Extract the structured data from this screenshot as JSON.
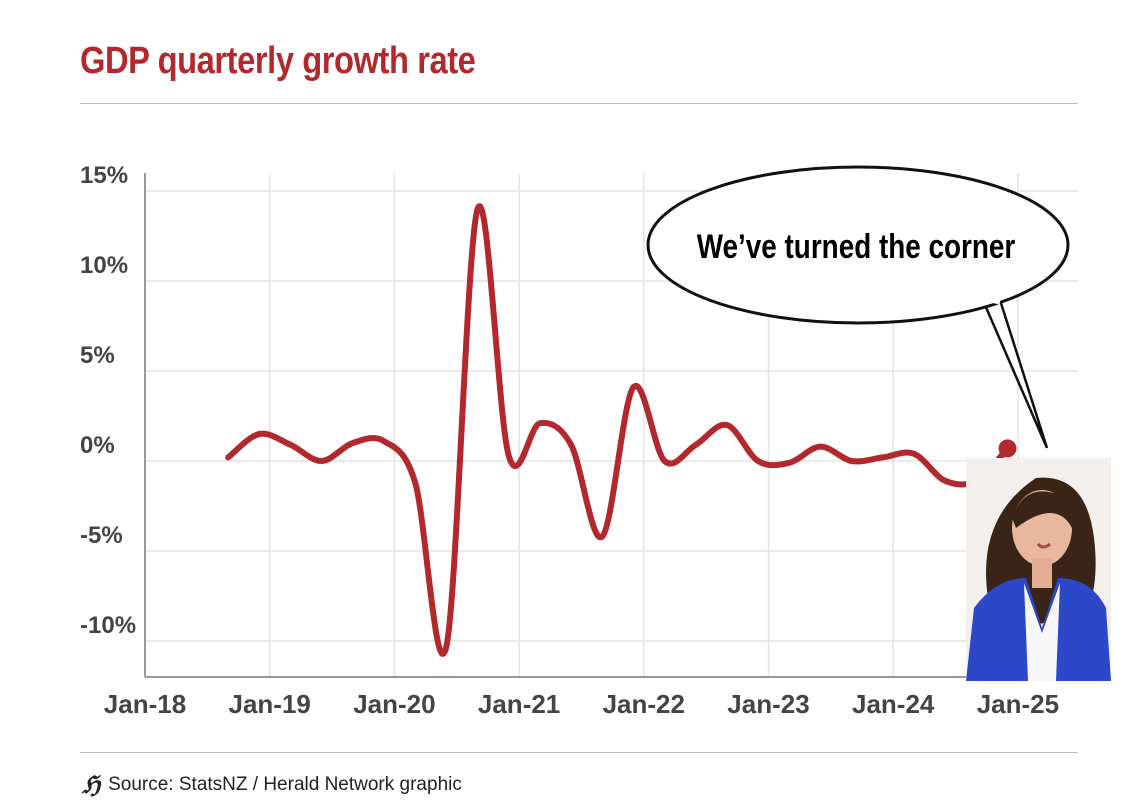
{
  "title": "GDP quarterly growth rate",
  "source": "Source: StatsNZ / Herald Network graphic",
  "logo_text": "H",
  "speech_bubble": "We’ve turned the corner",
  "colors": {
    "line": "#b3282d",
    "title": "#b3282d",
    "grid": "#e3e3e3"
  },
  "chart_data": {
    "type": "line",
    "title": "GDP quarterly growth rate",
    "xlabel": "",
    "ylabel": "",
    "ylim": [
      -12,
      16
    ],
    "yticks": [
      15,
      10,
      5,
      0,
      -5,
      -10
    ],
    "ytick_labels": [
      "15%",
      "10%",
      "5%",
      "0%",
      "-5%",
      "-10%"
    ],
    "xtick_labels": [
      "Jan-18",
      "Jan-19",
      "Jan-20",
      "Jan-21",
      "Jan-22",
      "Jan-23",
      "Jan-24",
      "Jan-25"
    ],
    "x": [
      "Sep-18",
      "Dec-18",
      "Mar-19",
      "Jun-19",
      "Sep-19",
      "Dec-19",
      "Mar-20",
      "Jun-20",
      "Sep-20",
      "Dec-20",
      "Mar-21",
      "Jun-21",
      "Sep-21",
      "Dec-21",
      "Mar-22",
      "Jun-22",
      "Sep-22",
      "Dec-22",
      "Mar-23",
      "Jun-23",
      "Sep-23",
      "Dec-23",
      "Mar-24",
      "Jun-24",
      "Sep-24",
      "Dec-24"
    ],
    "series": [
      {
        "name": "GDP growth",
        "values": [
          0.2,
          1.5,
          0.9,
          0.0,
          1.0,
          1.1,
          -1.2,
          -10.3,
          14.0,
          0.3,
          2.1,
          0.9,
          -4.2,
          4.1,
          0.0,
          0.9,
          2.0,
          0.0,
          -0.1,
          0.8,
          0.0,
          0.2,
          0.4,
          -1.1,
          -1.1,
          0.7
        ]
      }
    ],
    "grid": true,
    "annotations": [
      "We’ve turned the corner"
    ]
  }
}
